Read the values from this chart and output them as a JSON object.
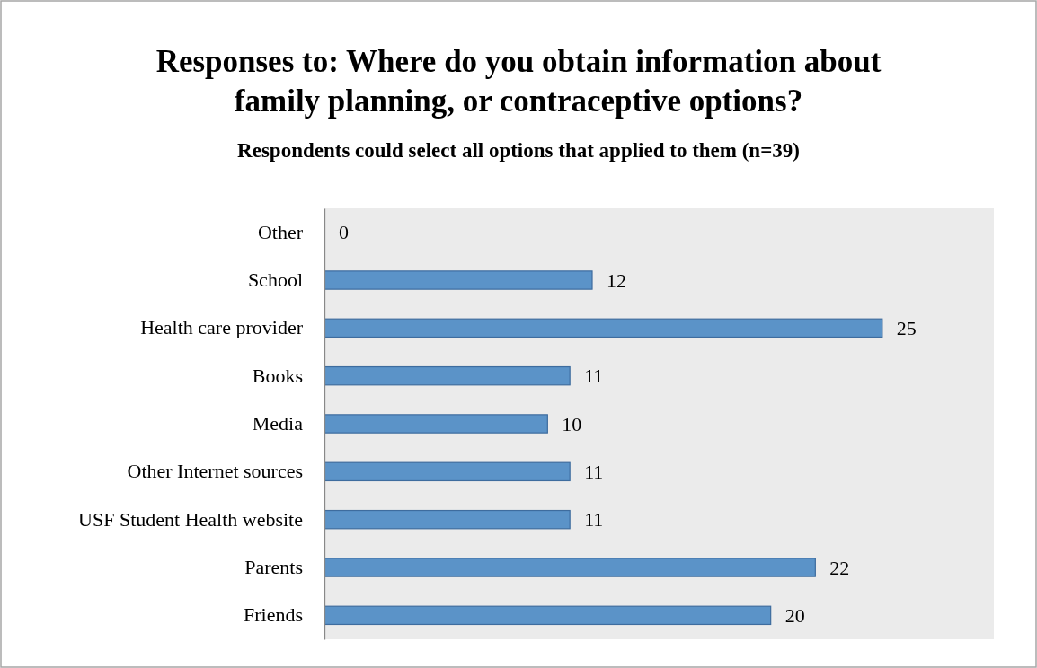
{
  "chart_data": {
    "type": "bar",
    "orientation": "horizontal",
    "title": "Responses to: Where do you obtain information about family planning, or contraceptive options?",
    "subtitle": "Respondents could select all options that applied to them (n=39)",
    "categories": [
      "Other",
      "School",
      "Health care provider",
      "Books",
      "Media",
      "Other Internet sources",
      "USF Student Health website",
      "Parents",
      "Friends"
    ],
    "values": [
      0,
      12,
      25,
      11,
      10,
      11,
      11,
      22,
      20
    ],
    "color": "#5b93c8",
    "xlim": [
      0,
      30
    ],
    "tick_labels": "y",
    "data_labels": true
  }
}
